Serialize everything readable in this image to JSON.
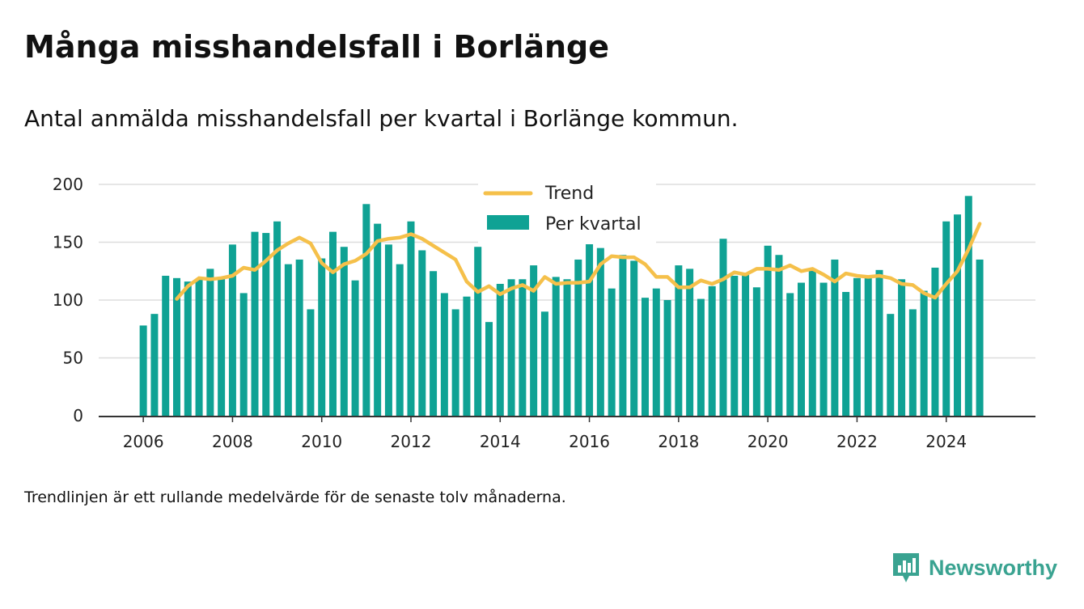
{
  "title": "Många misshandelsfall i Borlänge",
  "subtitle": "Antal anmälda misshandelsfall per kvartal i Borlänge kommun.",
  "note": "Trendlinjen är ett rullande medelvärde för de senaste tolv månaderna.",
  "brand": "Newsworthy",
  "colors": {
    "bars": "#0fa294",
    "trend": "#f5c04a",
    "grid": "#dddddd",
    "axis": "#333333",
    "brand": "#3aa391"
  },
  "chart_data": {
    "type": "bar",
    "x_tick_labels": [
      "2006",
      "2008",
      "2010",
      "2012",
      "2014",
      "2016",
      "2018",
      "2020",
      "2022",
      "2024"
    ],
    "y_tick_labels": [
      "0",
      "50",
      "100",
      "150",
      "200"
    ],
    "ylim": [
      0,
      200
    ],
    "xlim": [
      2005.0,
      2026.0
    ],
    "grid": true,
    "legend_position": "top-center",
    "x": [
      2006.0,
      2006.25,
      2006.5,
      2006.75,
      2007.0,
      2007.25,
      2007.5,
      2007.75,
      2008.0,
      2008.25,
      2008.5,
      2008.75,
      2009.0,
      2009.25,
      2009.5,
      2009.75,
      2010.0,
      2010.25,
      2010.5,
      2010.75,
      2011.0,
      2011.25,
      2011.5,
      2011.75,
      2012.0,
      2012.25,
      2012.5,
      2012.75,
      2013.0,
      2013.25,
      2013.5,
      2013.75,
      2014.0,
      2014.25,
      2014.5,
      2014.75,
      2015.0,
      2015.25,
      2015.5,
      2015.75,
      2016.0,
      2016.25,
      2016.5,
      2016.75,
      2017.0,
      2017.25,
      2017.5,
      2017.75,
      2018.0,
      2018.25,
      2018.5,
      2018.75,
      2019.0,
      2019.25,
      2019.5,
      2019.75,
      2020.0,
      2020.25,
      2020.5,
      2020.75,
      2021.0,
      2021.25,
      2021.5,
      2021.75,
      2022.0,
      2022.25,
      2022.5,
      2022.75,
      2023.0,
      2023.25,
      2023.5,
      2023.75,
      2024.0,
      2024.25,
      2024.5,
      2024.75
    ],
    "series": [
      {
        "name": "Per kvartal",
        "type": "bar",
        "values": [
          78,
          88,
          121,
          119,
          116,
          118,
          127,
          120,
          148,
          106,
          159,
          158,
          168,
          131,
          135,
          92,
          136,
          159,
          146,
          117,
          183,
          166,
          148,
          131,
          168,
          143,
          125,
          106,
          92,
          103,
          146,
          81,
          114,
          118,
          118,
          130,
          90,
          120,
          118,
          135,
          154,
          145,
          110,
          139,
          134,
          102,
          110,
          100,
          130,
          127,
          101,
          112,
          153,
          121,
          122,
          111,
          147,
          139,
          106,
          115,
          126,
          115,
          135,
          107,
          119,
          121,
          126,
          88,
          118,
          92,
          108,
          128,
          168,
          174,
          190,
          135
        ]
      },
      {
        "name": "Trend",
        "type": "line",
        "x": [
          2006.75,
          2007.0,
          2007.25,
          2007.5,
          2007.75,
          2008.0,
          2008.25,
          2008.5,
          2008.75,
          2009.0,
          2009.25,
          2009.5,
          2009.75,
          2010.0,
          2010.25,
          2010.5,
          2010.75,
          2011.0,
          2011.25,
          2011.5,
          2011.75,
          2012.0,
          2012.25,
          2012.5,
          2012.75,
          2013.0,
          2013.25,
          2013.5,
          2013.75,
          2014.0,
          2014.25,
          2014.5,
          2014.75,
          2015.0,
          2015.25,
          2015.5,
          2015.75,
          2016.0,
          2016.25,
          2016.5,
          2016.75,
          2017.0,
          2017.25,
          2017.5,
          2017.75,
          2018.0,
          2018.25,
          2018.5,
          2018.75,
          2019.0,
          2019.25,
          2019.5,
          2019.75,
          2020.0,
          2020.25,
          2020.5,
          2020.75,
          2021.0,
          2021.25,
          2021.5,
          2021.75,
          2022.0,
          2022.25,
          2022.5,
          2022.75,
          2023.0,
          2023.25,
          2023.5,
          2023.75,
          2024.0,
          2024.25,
          2024.5,
          2024.75
        ],
        "values": [
          101,
          112,
          119,
          118,
          119,
          121,
          128,
          126,
          134,
          143,
          149,
          154,
          149,
          132,
          124,
          131,
          134,
          140,
          151,
          153,
          154,
          157,
          153,
          147,
          141,
          135,
          116,
          107,
          112,
          105,
          110,
          113,
          108,
          120,
          114,
          115,
          115,
          116,
          131,
          138,
          137,
          137,
          131,
          120,
          120,
          111,
          111,
          117,
          114,
          118,
          124,
          122,
          127,
          127,
          126,
          130,
          125,
          127,
          122,
          116,
          123,
          121,
          120,
          121,
          119,
          114,
          113,
          106,
          102,
          114,
          125,
          144,
          166
        ]
      }
    ]
  }
}
